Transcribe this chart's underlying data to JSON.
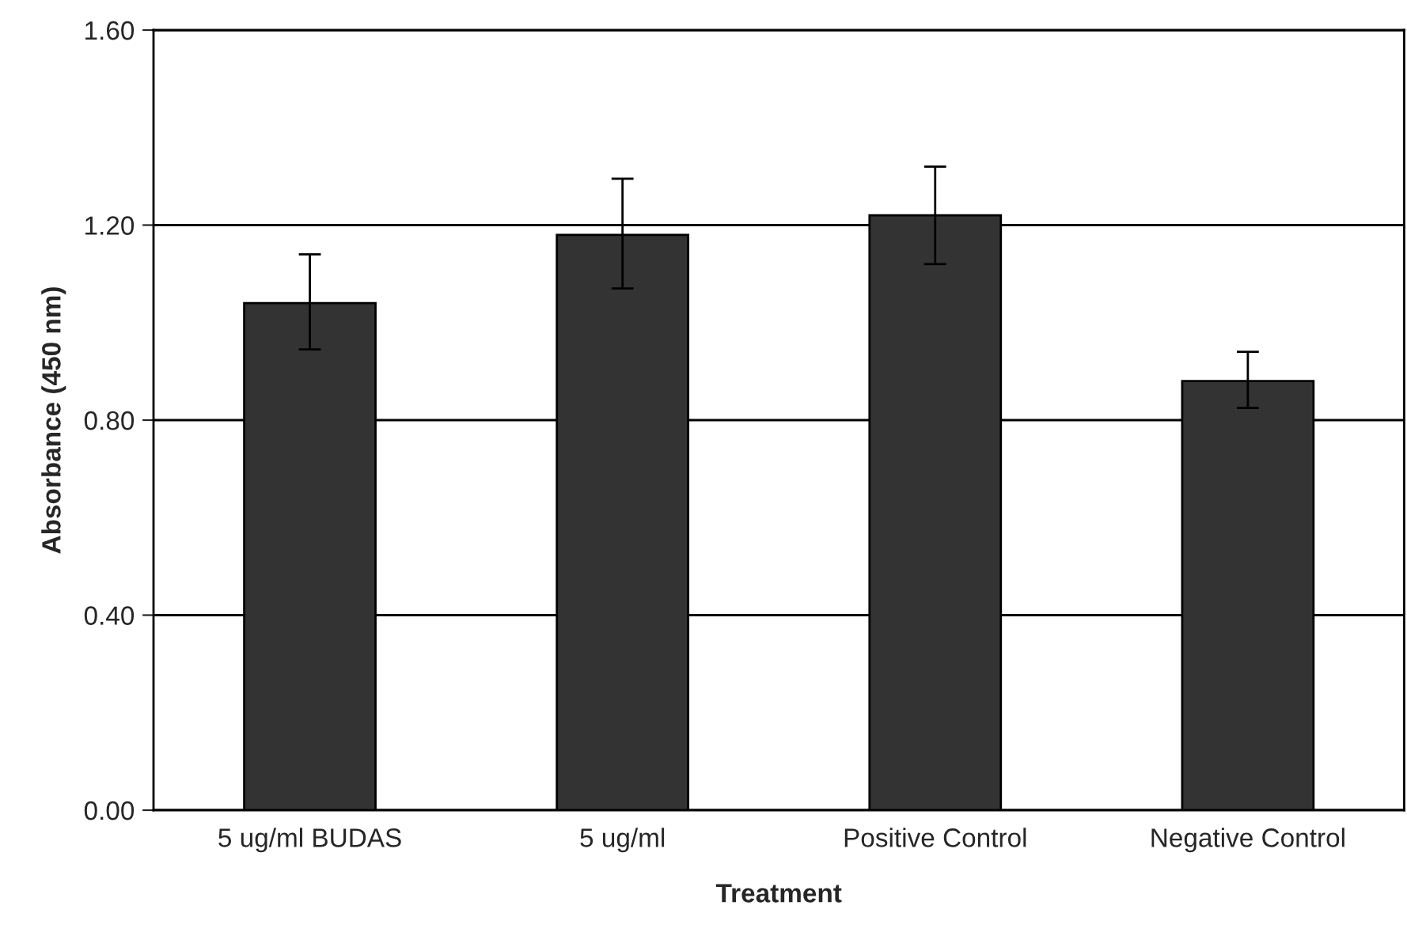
{
  "chart_data": {
    "type": "bar",
    "xlabel": "Treatment",
    "ylabel": "Absorbance (450 nm)",
    "categories": [
      "5 ug/ml BUDAS",
      "5 ug/ml",
      "Positive Control",
      "Negative Control"
    ],
    "values": [
      1.04,
      1.18,
      1.22,
      0.88
    ],
    "errors": [
      [
        0.945,
        1.14
      ],
      [
        1.07,
        1.295
      ],
      [
        1.12,
        1.32
      ],
      [
        0.825,
        0.94
      ]
    ],
    "color": "#333333",
    "ylim": [
      0,
      1.6
    ],
    "yticks": [
      {
        "value": 0,
        "label": "0.00"
      },
      {
        "value": 0.4,
        "label": "0.40"
      },
      {
        "value": 0.8,
        "label": "0.80"
      },
      {
        "value": 1.2,
        "label": "1.20"
      },
      {
        "value": 1.6,
        "label": "1.60"
      }
    ],
    "grid": "y"
  }
}
